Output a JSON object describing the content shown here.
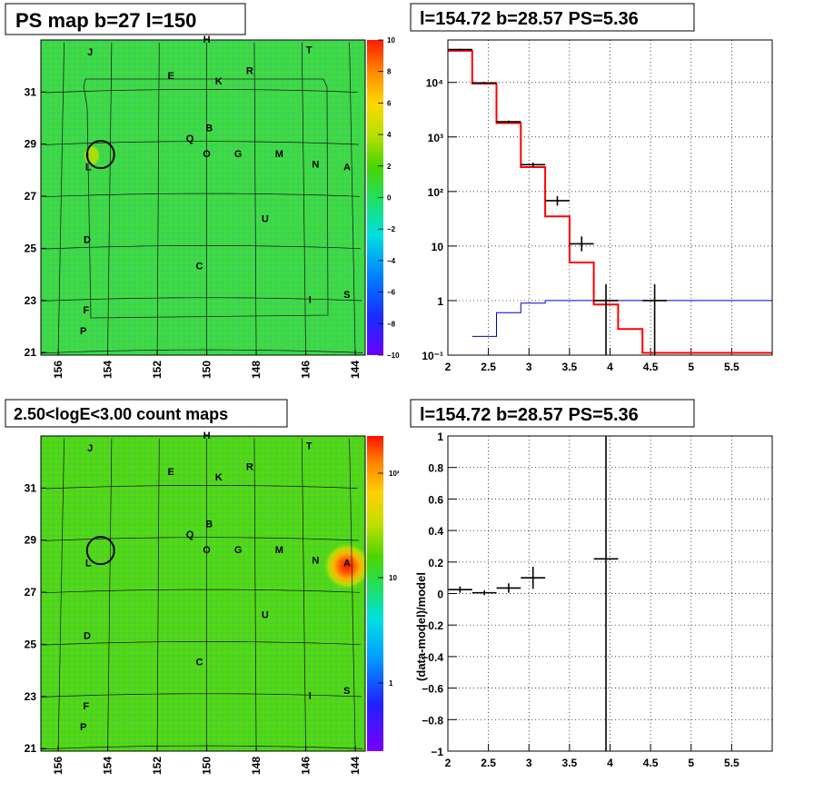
{
  "panels": {
    "ps_map": {
      "title": "PS map b=27 l=150",
      "colorbar_ticks": [
        "10",
        "8",
        "6",
        "4",
        "2",
        "0",
        "−2",
        "−4",
        "−6",
        "−8",
        "−10"
      ],
      "lon_ticks": [
        "156",
        "154",
        "152",
        "150",
        "148",
        "146",
        "144"
      ],
      "lat_ticks": [
        "31",
        "29",
        "27",
        "25",
        "23",
        "21"
      ]
    },
    "count_map": {
      "title": "2.50<logE<3.00 count maps",
      "colorbar_ticks": [
        "10²",
        "10",
        "1"
      ],
      "lon_ticks": [
        "156",
        "154",
        "152",
        "150",
        "148",
        "146",
        "144"
      ],
      "lat_ticks": [
        "31",
        "29",
        "27",
        "25",
        "23",
        "21"
      ]
    },
    "spectrum": {
      "title": "l=154.72 b=28.57 PS=5.36"
    },
    "residual": {
      "title": "l=154.72 b=28.57 PS=5.36"
    }
  },
  "sources": [
    {
      "label": "H",
      "lon": 150.0,
      "lat": 32.9
    },
    {
      "label": "J",
      "lon": 154.9,
      "lat": 32.4
    },
    {
      "label": "T",
      "lon": 145.7,
      "lat": 32.5
    },
    {
      "label": "R",
      "lon": 148.2,
      "lat": 31.7
    },
    {
      "label": "E",
      "lon": 151.5,
      "lat": 31.5
    },
    {
      "label": "K",
      "lon": 149.5,
      "lat": 31.3
    },
    {
      "label": "B",
      "lon": 149.9,
      "lat": 29.5
    },
    {
      "label": "Q",
      "lon": 150.7,
      "lat": 29.1
    },
    {
      "label": "O",
      "lon": 150.0,
      "lat": 28.5
    },
    {
      "label": "G",
      "lon": 148.7,
      "lat": 28.5
    },
    {
      "label": "M",
      "lon": 147.0,
      "lat": 28.5
    },
    {
      "label": "N",
      "lon": 145.5,
      "lat": 28.1
    },
    {
      "label": "A",
      "lon": 144.2,
      "lat": 28.0
    },
    {
      "label": "L",
      "lon": 154.9,
      "lat": 28.0
    },
    {
      "label": "U",
      "lon": 147.6,
      "lat": 26.0
    },
    {
      "label": "D",
      "lon": 154.9,
      "lat": 25.2
    },
    {
      "label": "C",
      "lon": 150.3,
      "lat": 24.2
    },
    {
      "label": "I",
      "lon": 145.8,
      "lat": 22.9
    },
    {
      "label": "S",
      "lon": 144.3,
      "lat": 23.1
    },
    {
      "label": "F",
      "lon": 154.9,
      "lat": 22.5
    },
    {
      "label": "P",
      "lon": 155.0,
      "lat": 21.7
    }
  ],
  "chart_data": [
    {
      "type": "heatmap",
      "panel": "ps_map",
      "title": "PS map b=27 l=150",
      "xlim": [
        156.7,
        143.6
      ],
      "ylim": [
        20.9,
        33.0
      ],
      "x_ticks": [
        156,
        154,
        152,
        150,
        148,
        146,
        144
      ],
      "y_ticks": [
        31,
        29,
        27,
        25,
        23,
        21
      ],
      "z_range": [
        -10,
        10
      ],
      "background_level": 0.5,
      "grid": true,
      "circle": {
        "lon": 154.4,
        "lat": 28.6
      }
    },
    {
      "type": "heatmap",
      "panel": "count_map",
      "title": "2.50<logE<3.00 count maps",
      "xlim": [
        156.7,
        143.6
      ],
      "ylim": [
        20.9,
        33.0
      ],
      "x_ticks": [
        156,
        154,
        152,
        150,
        148,
        146,
        144
      ],
      "y_ticks": [
        31,
        29,
        27,
        25,
        23,
        21
      ],
      "z_scale": "log",
      "z_range": [
        0.3,
        300
      ],
      "background_level": 5,
      "hotspot": {
        "lon": 144.2,
        "lat": 28.0,
        "peak": 200
      },
      "grid": true,
      "circle": {
        "lon": 154.4,
        "lat": 28.6
      }
    },
    {
      "type": "line",
      "panel": "spectrum",
      "title": "l=154.72 b=28.57 PS=5.36",
      "xlim": [
        2,
        6.0
      ],
      "ylim": [
        0.1,
        60000
      ],
      "y_scale": "log",
      "x_ticks": [
        2,
        2.5,
        3,
        3.5,
        4,
        4.5,
        5,
        5.5
      ],
      "y_ticks": [
        0.1,
        1,
        10,
        100,
        1000,
        10000
      ],
      "grid": true,
      "series": [
        {
          "style": "step",
          "color": "#ff0000",
          "edges": [
            2.0,
            2.3,
            2.6,
            2.9,
            3.2,
            3.5,
            3.8,
            4.1,
            4.4,
            4.7,
            6.0
          ],
          "values": [
            38000,
            9500,
            1800,
            280,
            35,
            5,
            0.85,
            0.3,
            0.11,
            0.11
          ]
        },
        {
          "style": "step",
          "color": "#0000cc",
          "edges": [
            2.3,
            2.6,
            2.9,
            3.2,
            3.5,
            3.8,
            4.1,
            4.4,
            4.7,
            6.0
          ],
          "values": [
            0.22,
            0.6,
            0.9,
            1.0,
            1.0,
            1.0,
            1.0,
            1.0,
            1.0
          ]
        },
        {
          "style": "errorbars",
          "color": "#000000",
          "points": [
            {
              "x": 2.15,
              "xerr": 0.15,
              "y": 40000,
              "ylo": 38500,
              "yhi": 41500
            },
            {
              "x": 2.45,
              "xerr": 0.15,
              "y": 9800,
              "ylo": 9400,
              "yhi": 10200
            },
            {
              "x": 2.75,
              "xerr": 0.15,
              "y": 1900,
              "ylo": 1800,
              "yhi": 2000
            },
            {
              "x": 3.05,
              "xerr": 0.15,
              "y": 310,
              "ylo": 280,
              "yhi": 340
            },
            {
              "x": 3.35,
              "xerr": 0.15,
              "y": 68,
              "ylo": 55,
              "yhi": 82
            },
            {
              "x": 3.65,
              "xerr": 0.15,
              "y": 11,
              "ylo": 8,
              "yhi": 15
            },
            {
              "x": 3.95,
              "xerr": 0.15,
              "y": 1,
              "ylo": 0.1,
              "yhi": 2
            },
            {
              "x": 4.55,
              "xerr": 0.15,
              "y": 1,
              "ylo": 0.1,
              "yhi": 2
            }
          ]
        }
      ]
    },
    {
      "type": "scatter",
      "panel": "residual",
      "title": "l=154.72 b=28.57 PS=5.36",
      "ylabel": "(data-model)/model",
      "xlim": [
        2,
        6.0
      ],
      "ylim": [
        -1,
        1
      ],
      "x_ticks": [
        2,
        2.5,
        3,
        3.5,
        4,
        4.5,
        5,
        5.5
      ],
      "y_ticks": [
        -1,
        -0.8,
        -0.6,
        -0.4,
        -0.2,
        0,
        0.2,
        0.4,
        0.6,
        0.8,
        1
      ],
      "grid": true,
      "points": [
        {
          "x": 2.15,
          "xerr": 0.15,
          "y": 0.025,
          "yerr": 0.02
        },
        {
          "x": 2.45,
          "xerr": 0.15,
          "y": 0.005,
          "yerr": 0.015
        },
        {
          "x": 2.75,
          "xerr": 0.15,
          "y": 0.035,
          "yerr": 0.03
        },
        {
          "x": 3.05,
          "xerr": 0.15,
          "y": 0.1,
          "yerr": 0.07
        },
        {
          "x": 3.95,
          "xerr": 0.15,
          "y": 0.22,
          "yerr": 1.5
        }
      ]
    }
  ]
}
